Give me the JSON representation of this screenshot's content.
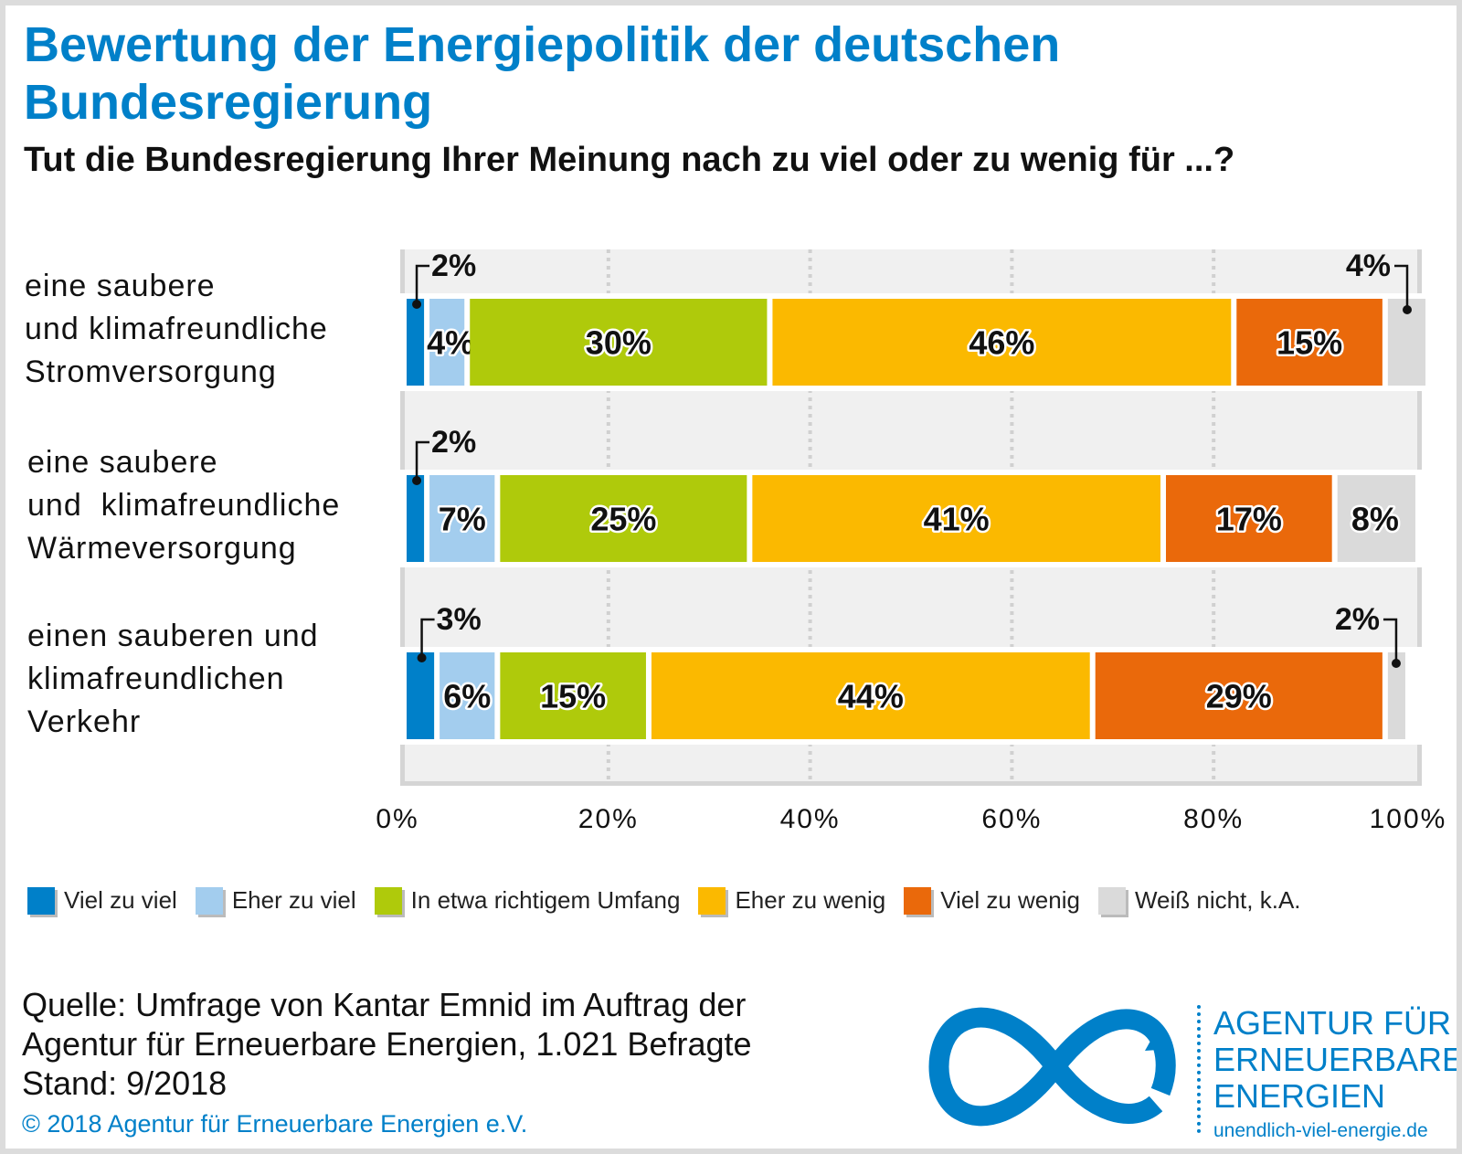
{
  "title": "Bewertung der Energiepolitik der deutschen Bundesregierung",
  "subtitle": "Tut die Bundesregierung Ihrer Meinung nach zu viel oder zu wenig für ...?",
  "chart_data": {
    "type": "bar",
    "stacked": true,
    "orientation": "horizontal",
    "categories": [
      [
        "eine saubere",
        "und klimafreundliche",
        "Stromversorgung"
      ],
      [
        "eine saubere",
        "und  klimafreundliche",
        "Wärmeversorgung"
      ],
      [
        "einen sauberen und",
        "klimafreundlichen",
        "Verkehr"
      ]
    ],
    "series": [
      {
        "name": "Viel zu viel",
        "color": "#0080c9",
        "values": [
          2,
          2,
          3
        ]
      },
      {
        "name": "Eher zu viel",
        "color": "#a3cdee",
        "values": [
          4,
          7,
          6
        ]
      },
      {
        "name": "In etwa richtigem Umfang",
        "color": "#afca0b",
        "values": [
          30,
          25,
          15
        ]
      },
      {
        "name": "Eher zu wenig",
        "color": "#fbb900",
        "values": [
          46,
          41,
          44
        ]
      },
      {
        "name": "Viel zu wenig",
        "color": "#ea690b",
        "values": [
          15,
          17,
          29
        ]
      },
      {
        "name": "Weiß nicht, k.A.",
        "color": "#dadada",
        "values": [
          4,
          8,
          2
        ]
      }
    ],
    "xlim": [
      0,
      100
    ],
    "xticks": [
      "0%",
      "20%",
      "40%",
      "60%",
      "80%",
      "100%"
    ],
    "grid": true,
    "legend": "bottom"
  },
  "source": [
    "Quelle: Umfrage von Kantar Emnid im Auftrag der",
    "Agentur für Erneuerbare Energien, 1.021 Befragte",
    "Stand: 9/2018"
  ],
  "copyright": "© 2018 Agentur für Erneuerbare Energien e.V.",
  "logo": {
    "line1": "AGENTUR FÜR",
    "line2": "ERNEUERBARE",
    "line3": "ENERGIEN",
    "url": "unendlich-viel-energie.de"
  }
}
